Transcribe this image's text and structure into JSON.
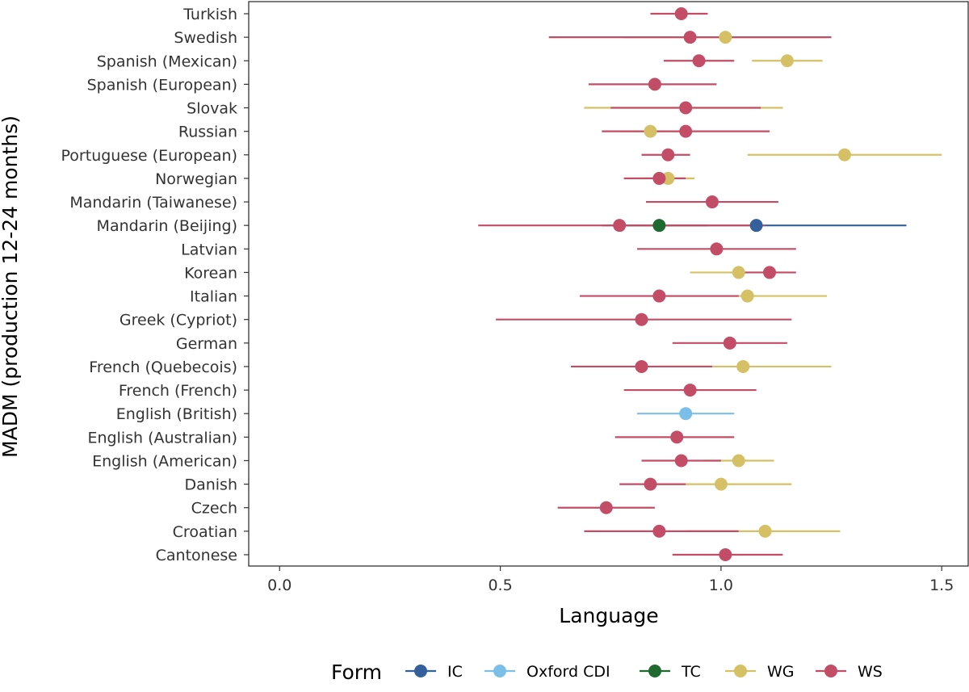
{
  "chart_data": {
    "type": "scatter",
    "title": "",
    "xlabel": "Language",
    "ylabel": "MADM (production 12-24 months)",
    "xlim": [
      -0.07,
      1.56
    ],
    "xticks": [
      0.0,
      0.5,
      1.0,
      1.5
    ],
    "xtick_labels": [
      "0.0",
      "0.5",
      "1.0",
      "1.5"
    ],
    "grid": false,
    "legend": {
      "title": "Form",
      "position": "bottom",
      "items": [
        {
          "key": "IC",
          "label": "IC",
          "color": "#34609e"
        },
        {
          "key": "Oxford CDI",
          "label": "Oxford CDI",
          "color": "#7bbfe9"
        },
        {
          "key": "TC",
          "label": "TC",
          "color": "#1f6a2e"
        },
        {
          "key": "WG",
          "label": "WG",
          "color": "#d6c065"
        },
        {
          "key": "WS",
          "label": "WS",
          "color": "#c34d67"
        }
      ]
    },
    "categories": [
      "Turkish",
      "Swedish",
      "Spanish (Mexican)",
      "Spanish (European)",
      "Slovak",
      "Russian",
      "Portuguese (European)",
      "Norwegian",
      "Mandarin (Taiwanese)",
      "Mandarin (Beijing)",
      "Latvian",
      "Korean",
      "Italian",
      "Greek (Cypriot)",
      "German",
      "French (Quebecois)",
      "French (French)",
      "English (British)",
      "English (Australian)",
      "English (American)",
      "Danish",
      "Czech",
      "Croatian",
      "Cantonese"
    ],
    "series": [
      {
        "name": "WG",
        "points": [
          {
            "category": "Swedish",
            "x": 1.01,
            "lo": 0.78,
            "hi": 1.24
          },
          {
            "category": "Spanish (Mexican)",
            "x": 1.15,
            "lo": 1.07,
            "hi": 1.23
          },
          {
            "category": "Slovak",
            "x": 0.92,
            "lo": 0.69,
            "hi": 1.14
          },
          {
            "category": "Russian",
            "x": 0.84,
            "lo": 0.77,
            "hi": 0.92
          },
          {
            "category": "Portuguese (European)",
            "x": 1.28,
            "lo": 1.06,
            "hi": 1.5
          },
          {
            "category": "Norwegian",
            "x": 0.88,
            "lo": 0.82,
            "hi": 0.94
          },
          {
            "category": "Korean",
            "x": 1.04,
            "lo": 0.93,
            "hi": 1.15
          },
          {
            "category": "Italian",
            "x": 1.06,
            "lo": 0.87,
            "hi": 1.24
          },
          {
            "category": "French (Quebecois)",
            "x": 1.05,
            "lo": 0.86,
            "hi": 1.25
          },
          {
            "category": "English (American)",
            "x": 1.04,
            "lo": 0.96,
            "hi": 1.12
          },
          {
            "category": "Danish",
            "x": 1.0,
            "lo": 0.84,
            "hi": 1.16
          },
          {
            "category": "Croatian",
            "x": 1.1,
            "lo": 0.92,
            "hi": 1.27
          }
        ]
      },
      {
        "name": "IC",
        "points": [
          {
            "category": "Mandarin (Beijing)",
            "x": 1.08,
            "lo": 0.73,
            "hi": 1.42
          }
        ]
      },
      {
        "name": "TC",
        "points": [
          {
            "category": "Mandarin (Beijing)",
            "x": 0.86,
            "lo": 0.76,
            "hi": 0.97
          }
        ]
      },
      {
        "name": "Oxford CDI",
        "points": [
          {
            "category": "English (British)",
            "x": 0.92,
            "lo": 0.81,
            "hi": 1.03
          }
        ]
      },
      {
        "name": "WS",
        "points": [
          {
            "category": "Turkish",
            "x": 0.91,
            "lo": 0.84,
            "hi": 0.97
          },
          {
            "category": "Swedish",
            "x": 0.93,
            "lo": 0.61,
            "hi": 1.25
          },
          {
            "category": "Spanish (Mexican)",
            "x": 0.95,
            "lo": 0.87,
            "hi": 1.03
          },
          {
            "category": "Spanish (European)",
            "x": 0.85,
            "lo": 0.7,
            "hi": 0.99
          },
          {
            "category": "Slovak",
            "x": 0.92,
            "lo": 0.75,
            "hi": 1.09
          },
          {
            "category": "Russian",
            "x": 0.92,
            "lo": 0.73,
            "hi": 1.11
          },
          {
            "category": "Portuguese (European)",
            "x": 0.88,
            "lo": 0.82,
            "hi": 0.93
          },
          {
            "category": "Norwegian",
            "x": 0.86,
            "lo": 0.78,
            "hi": 0.92
          },
          {
            "category": "Mandarin (Taiwanese)",
            "x": 0.98,
            "lo": 0.83,
            "hi": 1.13
          },
          {
            "category": "Mandarin (Beijing)",
            "x": 0.77,
            "lo": 0.45,
            "hi": 1.1
          },
          {
            "category": "Latvian",
            "x": 0.99,
            "lo": 0.81,
            "hi": 1.17
          },
          {
            "category": "Korean",
            "x": 1.11,
            "lo": 1.04,
            "hi": 1.17
          },
          {
            "category": "Italian",
            "x": 0.86,
            "lo": 0.68,
            "hi": 1.04
          },
          {
            "category": "Greek (Cypriot)",
            "x": 0.82,
            "lo": 0.49,
            "hi": 1.16
          },
          {
            "category": "German",
            "x": 1.02,
            "lo": 0.89,
            "hi": 1.15
          },
          {
            "category": "French (Quebecois)",
            "x": 0.82,
            "lo": 0.66,
            "hi": 0.98
          },
          {
            "category": "French (French)",
            "x": 0.93,
            "lo": 0.78,
            "hi": 1.08
          },
          {
            "category": "English (Australian)",
            "x": 0.9,
            "lo": 0.76,
            "hi": 1.03
          },
          {
            "category": "English (American)",
            "x": 0.91,
            "lo": 0.82,
            "hi": 1.0
          },
          {
            "category": "Danish",
            "x": 0.84,
            "lo": 0.77,
            "hi": 0.92
          },
          {
            "category": "Czech",
            "x": 0.74,
            "lo": 0.63,
            "hi": 0.85
          },
          {
            "category": "Croatian",
            "x": 0.86,
            "lo": 0.69,
            "hi": 1.04
          },
          {
            "category": "Cantonese",
            "x": 1.01,
            "lo": 0.89,
            "hi": 1.14
          }
        ]
      }
    ]
  }
}
